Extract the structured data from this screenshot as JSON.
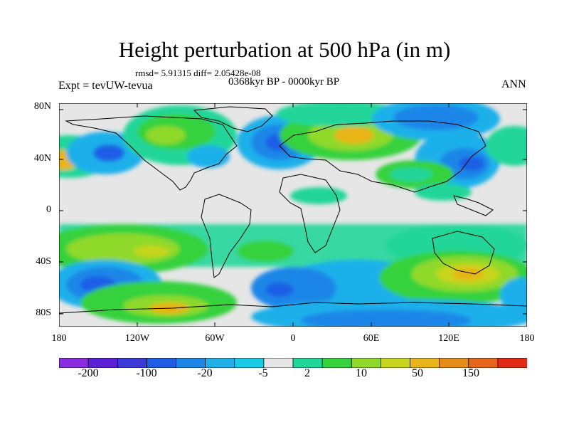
{
  "title": "Height perturbation at 500 hPa (in m)",
  "stats": "rmsd= 5.91315 diff= 2.05428e-08",
  "period": "0368kyr BP - 0000kyr BP",
  "experiment": "Expt = tevUW-tevua",
  "season": "ANN",
  "lat_labels": [
    "80N",
    "40N",
    "0",
    "40S",
    "80S"
  ],
  "lon_labels": [
    "180",
    "120W",
    "60W",
    "0",
    "60E",
    "120E",
    "180"
  ],
  "colorbar": {
    "colors": [
      "#8a2be2",
      "#5a1fd6",
      "#3a3ad8",
      "#1e5ee6",
      "#1c86e8",
      "#1fb0ea",
      "#19cbe6",
      "#e6e6e6",
      "#22d69a",
      "#35d23c",
      "#8fd92b",
      "#c7d51c",
      "#e8b419",
      "#e78c17",
      "#e5661a",
      "#e32a14"
    ],
    "labels": [
      "-200",
      "-100",
      "-20",
      "-5",
      "2",
      "10",
      "50",
      "150"
    ]
  }
}
